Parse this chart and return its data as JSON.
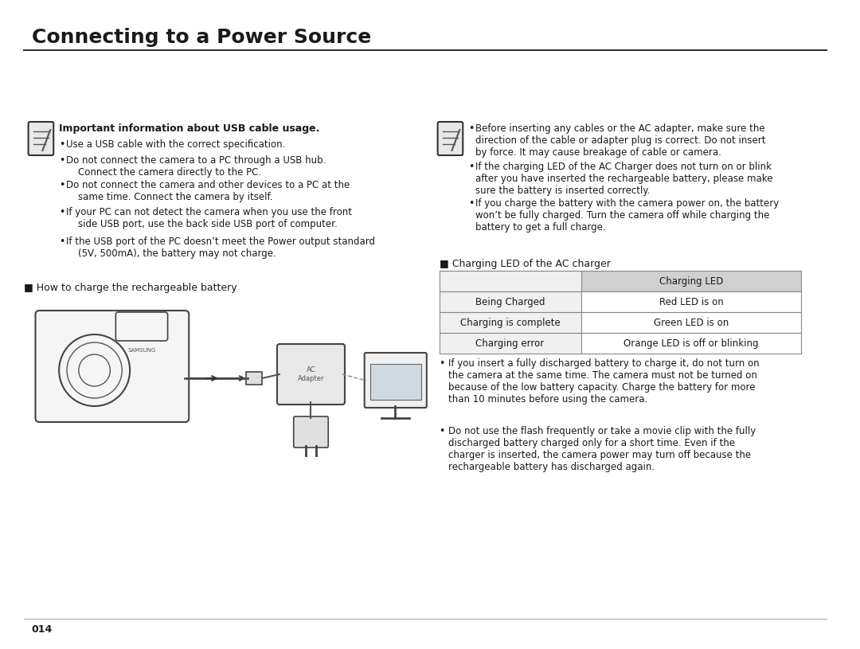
{
  "title": "Connecting to a Power Source",
  "bg_color": "#ffffff",
  "text_color": "#1a1a1a",
  "left_bold_header": "Important information about USB cable usage.",
  "left_bullets": [
    "Use a USB cable with the correct speciﬁcation.",
    "Do not connect the camera to a PC through a USB hub.\n    Connect the camera directly to the PC.",
    "Do not connect the camera and other devices to a PC at the\n    same time. Connect the camera by itself.",
    "If your PC can not detect the camera when you use the front\n    side USB port, use the back side USB port of computer.",
    "If the USB port of the PC doesn’t meet the Power output standard\n    (5V, 500mA), the battery may not charge."
  ],
  "right_bullets": [
    "Before inserting any cables or the AC adapter, make sure the\ndirection of the cable or adapter plug is correct. Do not insert\nby force. It may cause breakage of cable or camera.",
    "If the charging LED of the AC Charger does not turn on or blink\nafter you have inserted the rechargeable battery, please make\nsure the battery is inserted correctly.",
    "If you charge the battery with the camera power on, the battery\nwon’t be fully charged. Turn the camera off while charging the\nbattery to get a full charge."
  ],
  "charging_led_label": "■ Charging LED of the AC charger",
  "table_header_col1": "",
  "table_header_col2": "Charging LED",
  "table_rows": [
    [
      "Being Charged",
      "Red LED is on"
    ],
    [
      "Charging is complete",
      "Green LED is on"
    ],
    [
      "Charging error",
      "Orange LED is off or blinking"
    ]
  ],
  "table_header_bg": "#d0d0d0",
  "table_row_bg": "#f0f0f0",
  "how_to_charge_label": "■ How to charge the rechargeable battery",
  "bottom_bullets_left": [
    "If you insert a fully discharged battery to charge it, do not turn on\nthe camera at the same time. The camera must not be turned on\nbecause of the low battery capacity. Charge the battery for more\nthan 10 minutes before using the camera."
  ],
  "bottom_bullets_right": [
    "Do not use the flash frequently or take a movie clip with the fully\ndischarged battery charged only for a short time. Even if the\ncharger is inserted, the camera power may turn off because the\nrechargeable battery has discharged again."
  ],
  "page_number": "014"
}
